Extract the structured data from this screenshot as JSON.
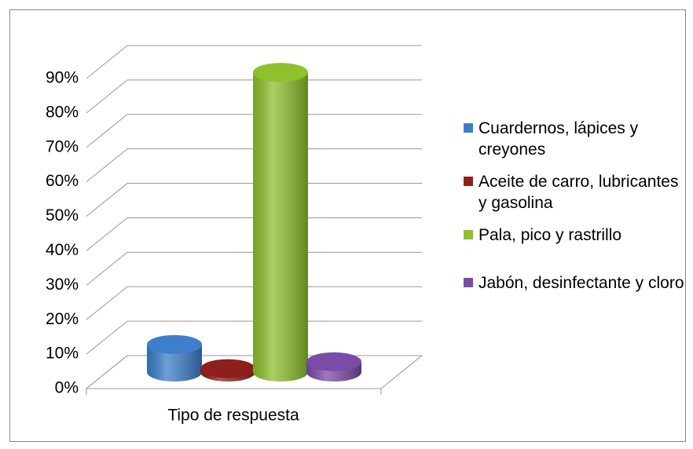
{
  "chart_data": {
    "type": "bar3d",
    "categories": [
      "Tipo de respuesta"
    ],
    "series": [
      {
        "name": "Cuardernos, lápices y creyones",
        "color": "#3d7fca",
        "values": [
          8
        ]
      },
      {
        "name": "Aceite de carro, lubricantes y gasolina",
        "color": "#8e1f1c",
        "values": [
          1
        ]
      },
      {
        "name": "Pala, pico y rastrillo",
        "color": "#8fc02e",
        "values": [
          87
        ]
      },
      {
        "name": "Jabón, desinfectante y cloro",
        "color": "#7b4ba8",
        "values": [
          3
        ]
      }
    ],
    "ylim": [
      0,
      90
    ],
    "yticks": [
      {
        "value": 0,
        "label": "0%"
      },
      {
        "value": 10,
        "label": "10%"
      },
      {
        "value": 20,
        "label": "20%"
      },
      {
        "value": 30,
        "label": "30%"
      },
      {
        "value": 40,
        "label": "40%"
      },
      {
        "value": 50,
        "label": "50%"
      },
      {
        "value": 60,
        "label": "60%"
      },
      {
        "value": 70,
        "label": "70%"
      },
      {
        "value": 80,
        "label": "80%"
      },
      {
        "value": 90,
        "label": "90%"
      }
    ],
    "grid": true,
    "legend": "right"
  }
}
